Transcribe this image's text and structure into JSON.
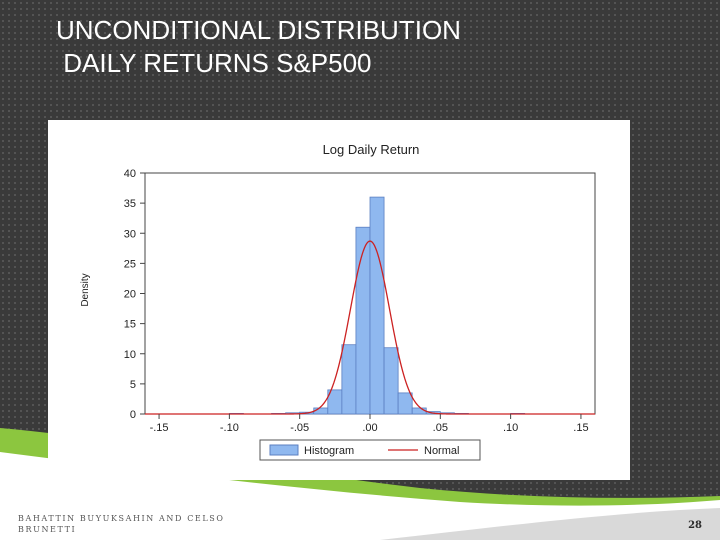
{
  "slide": {
    "title_line1": "UNCONDITIONAL DISTRIBUTION",
    "title_line2": " DAILY RETURNS S&P500",
    "footer_line1": "BAHATTIN BUYUKSAHIN AND CELSO",
    "footer_line2": "BRUNETTI",
    "page_number": "28"
  },
  "colors": {
    "background": "#3a3a3a",
    "accent_green": "#8cc63f",
    "bar_fill": "#8fb8ef",
    "bar_stroke": "#5b7fc2",
    "normal_line": "#cc2222"
  },
  "chart_data": {
    "type": "bar",
    "title": "Log Daily Return",
    "xlabel": "",
    "ylabel": "Density",
    "xlim": [
      -0.16,
      0.16
    ],
    "ylim": [
      0,
      40
    ],
    "xticks": [
      -0.15,
      -0.1,
      -0.05,
      0.0,
      0.05,
      0.1,
      0.15
    ],
    "xtick_labels": [
      "-.15",
      "-.10",
      "-.05",
      ".00",
      ".05",
      ".10",
      ".15"
    ],
    "yticks": [
      0,
      5,
      10,
      15,
      20,
      25,
      30,
      35,
      40
    ],
    "grid": false,
    "legend": {
      "placement": "bottom",
      "entries": [
        "Histogram",
        "Normal"
      ]
    },
    "histogram": {
      "name": "Histogram",
      "bin_width": 0.01,
      "bin_starts": [
        -0.1,
        -0.07,
        -0.06,
        -0.05,
        -0.04,
        -0.03,
        -0.02,
        -0.01,
        0.0,
        0.01,
        0.02,
        0.03,
        0.04,
        0.05,
        0.06,
        0.1
      ],
      "values": [
        0.1,
        0.1,
        0.2,
        0.3,
        1.0,
        4.0,
        11.5,
        31.0,
        36.0,
        11.0,
        3.5,
        1.0,
        0.4,
        0.2,
        0.1,
        0.1
      ]
    },
    "normal": {
      "name": "Normal",
      "mean": 0.0,
      "sd": 0.0139,
      "peak_density": 28.7
    }
  }
}
